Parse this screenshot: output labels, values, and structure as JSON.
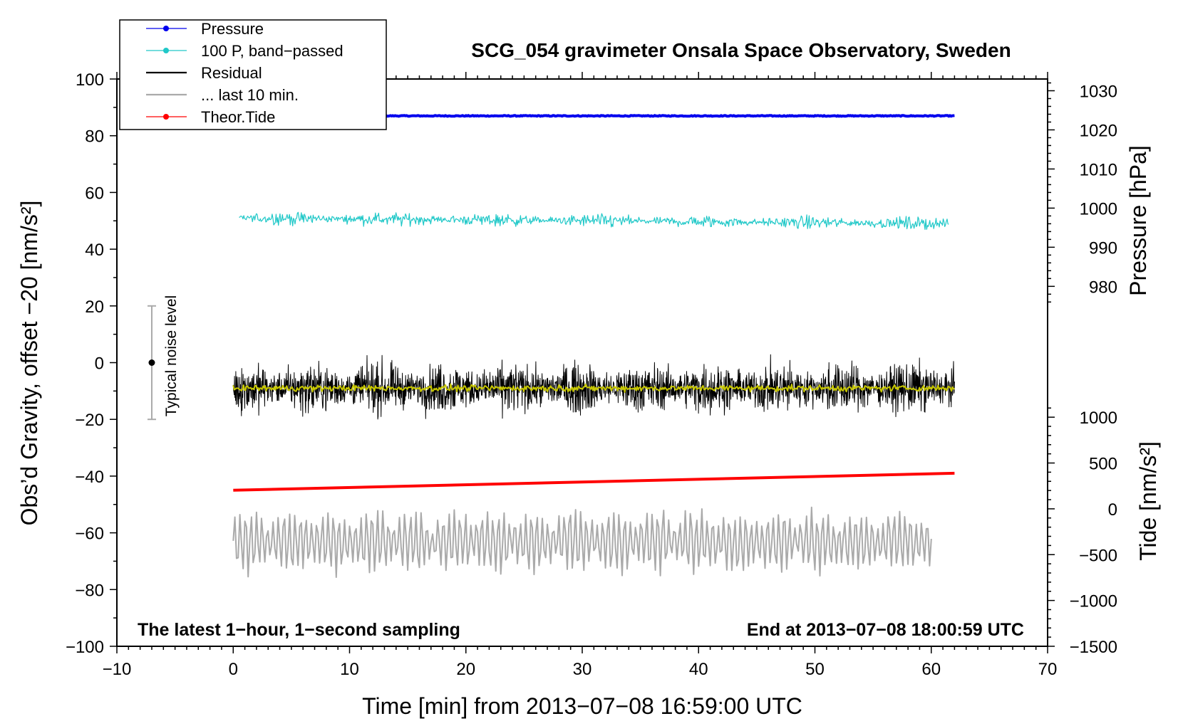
{
  "chart_data": {
    "type": "line",
    "title": "SCG_054 gravimeter Onsala Space Observatory, Sweden",
    "xlabel": "Time [min] from 2013−07−08 16:59:00 UTC",
    "ylabel_left": "Obs’d Gravity, offset −20 [nm/s²]",
    "ylabel_right_pressure": "Pressure [hPa]",
    "ylabel_right_tide": "Tide [nm/s²]",
    "xlim": [
      -10,
      70
    ],
    "ylim": [
      -100,
      100
    ],
    "x_ticks": [
      "−10",
      "0",
      "10",
      "20",
      "30",
      "40",
      "50",
      "60",
      "70"
    ],
    "y_ticks": [
      "−100",
      "−80",
      "−60",
      "−40",
      "−20",
      "0",
      "20",
      "40",
      "60",
      "80",
      "100"
    ],
    "pressure_ticks": [
      "980",
      "990",
      "1000",
      "1010",
      "1020",
      "1030"
    ],
    "tide_ticks": [
      "−1500",
      "−1000",
      "−500",
      "0",
      "500",
      "1000"
    ],
    "annotation_left": "The latest 1−hour, 1−second sampling",
    "annotation_right": "End at 2013−07−08 18:00:59 UTC",
    "noise_label": "Typical noise level",
    "noise_bar": {
      "x": -7,
      "center": 0,
      "low": -20,
      "high": 20
    },
    "legend": [
      {
        "label": "Pressure",
        "color": "#0000ee",
        "marker": true
      },
      {
        "label": "100 P, band−passed",
        "color": "#20c8c8",
        "marker": true
      },
      {
        "label": "Residual",
        "color": "#000000",
        "marker": false
      },
      {
        "label": "... last 10 min.",
        "color": "#aaaaaa",
        "marker": false
      },
      {
        "label": "Theor.Tide",
        "color": "#ff0000",
        "marker": true
      }
    ],
    "series": [
      {
        "name": "Pressure",
        "color": "#0000ee",
        "x_range": [
          3,
          62
        ],
        "level": 87,
        "amplitude": 0.3
      },
      {
        "name": "100 P, band−passed",
        "color": "#20c8c8",
        "x_range": [
          0.5,
          61.5
        ],
        "level_start": 51,
        "level_end": 49,
        "amplitude": 2.5
      },
      {
        "name": "Residual",
        "color": "#000000",
        "x_range": [
          0,
          62
        ],
        "level": -9,
        "amplitude": 12
      },
      {
        "name": "Residual smoothed",
        "color": "#c8c800",
        "x_range": [
          0,
          62
        ],
        "level": -9,
        "amplitude": 1.5
      },
      {
        "name": "Theor.Tide",
        "color": "#ff0000",
        "x_range": [
          0,
          62
        ],
        "y_start": -45,
        "y_end": -39
      },
      {
        "name": "... last 10 min.",
        "color": "#aaaaaa",
        "x_range": [
          0,
          60
        ],
        "level": -63,
        "amplitude": 11
      }
    ]
  }
}
